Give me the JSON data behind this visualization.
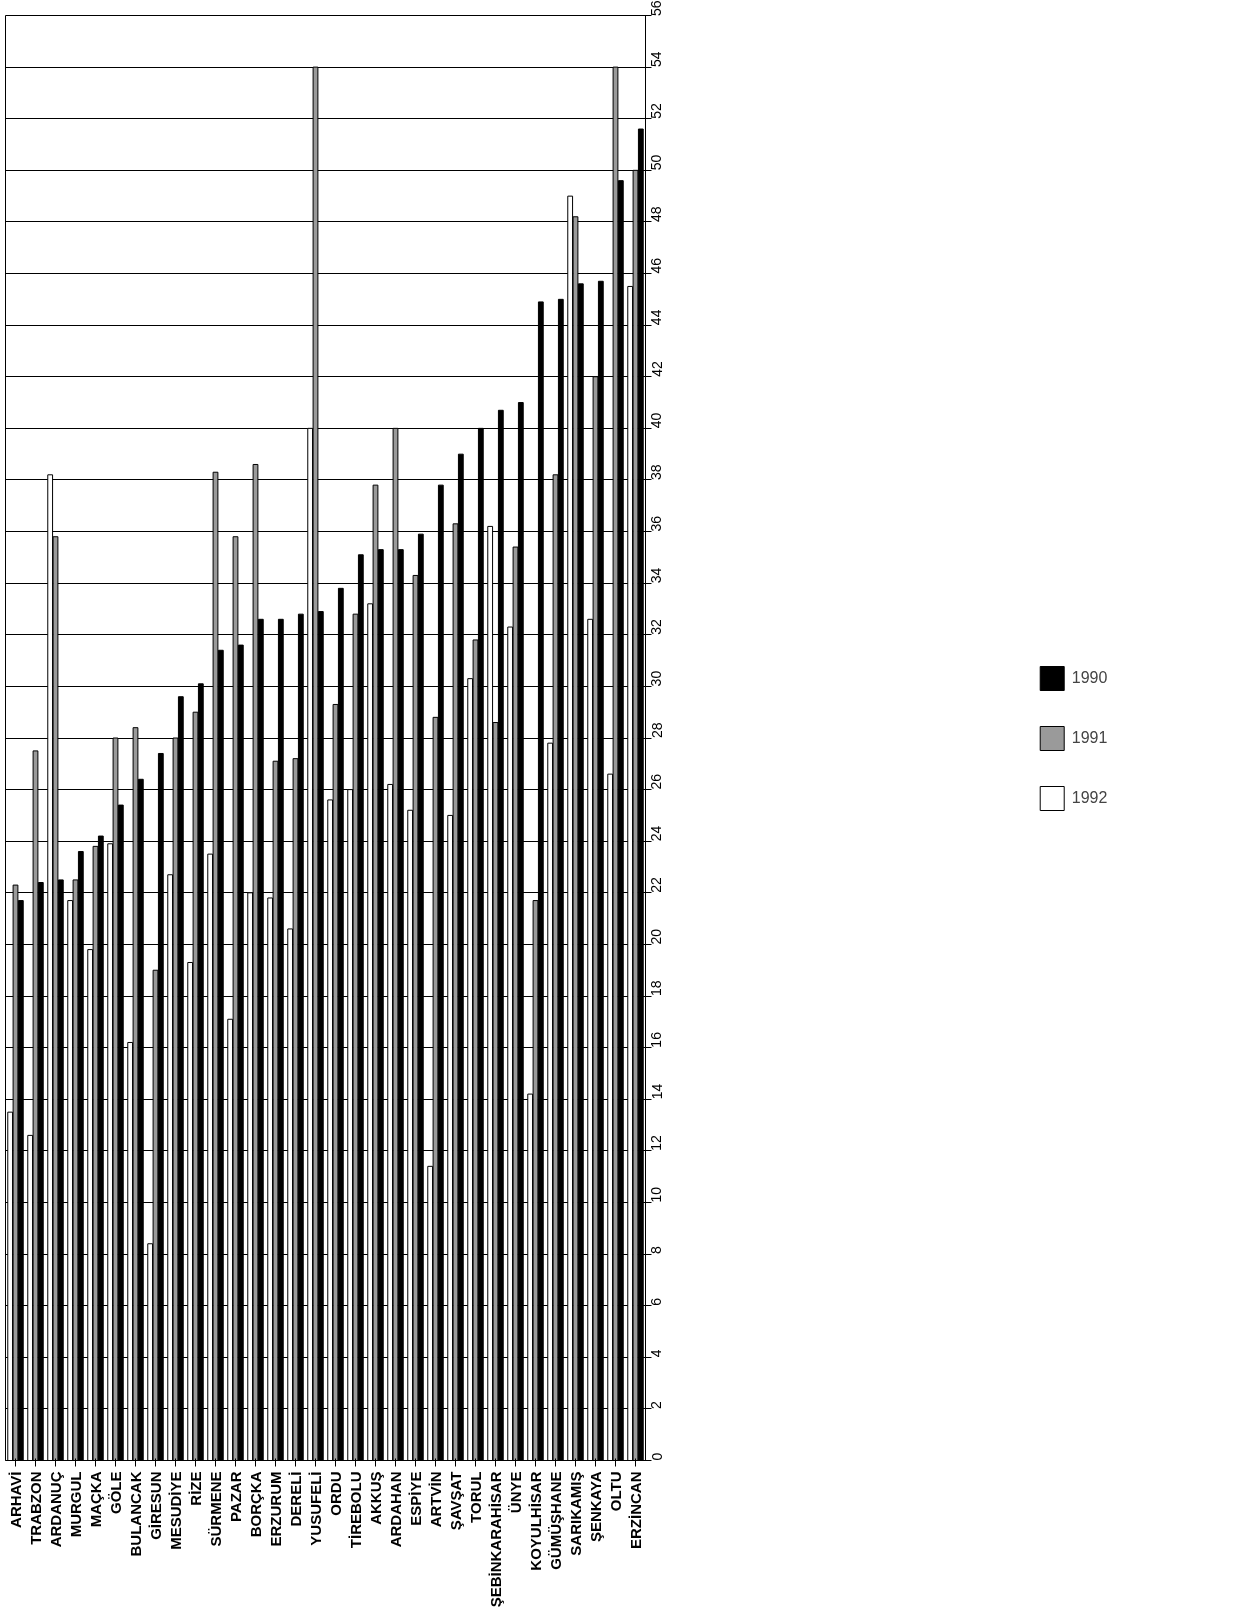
{
  "chart_data": {
    "type": "bar",
    "categories": [
      "ARHAVİ",
      "TRABZON",
      "ARDANUÇ",
      "MURGUL",
      "MAÇKA",
      "GÖLE",
      "BULANCAK",
      "GİRESUN",
      "MESUDİYE",
      "RİZE",
      "SÜRMENE",
      "PAZAR",
      "BORÇKA",
      "ERZURUM",
      "DERELİ",
      "YUSUFELİ",
      "ORDU",
      "TİREBOLU",
      "AKKUŞ",
      "ARDAHAN",
      "ESPİYE",
      "ARTVİN",
      "ŞAVŞAT",
      "TORUL",
      "ŞEBİNKARAHİSAR",
      "ÜNYE",
      "KOYULHİSAR",
      "GÜMÜŞHANE",
      "SARIKAMIŞ",
      "ŞENKAYA",
      "OLTU",
      "ERZİNCAN"
    ],
    "series": [
      {
        "name": "1992",
        "color": "#ffffff",
        "values": [
          13.5,
          12.6,
          38.2,
          21.7,
          19.8,
          23.9,
          16.2,
          8.4,
          22.7,
          19.3,
          23.5,
          17.1,
          22.0,
          21.8,
          20.6,
          40.0,
          25.6,
          26.0,
          33.2,
          26.2,
          25.2,
          11.4,
          25.0,
          30.3,
          36.2,
          32.3,
          14.2,
          27.8,
          49.0,
          32.6,
          26.6,
          45.5
        ]
      },
      {
        "name": "1991",
        "color": "#9a9a9a",
        "values": [
          22.3,
          27.5,
          35.8,
          22.5,
          23.8,
          28.0,
          28.4,
          19.0,
          28.0,
          29.0,
          38.3,
          35.8,
          38.6,
          27.1,
          27.2,
          54.0,
          29.3,
          32.8,
          37.8,
          40.0,
          34.3,
          28.8,
          36.3,
          31.8,
          28.6,
          35.4,
          21.7,
          38.2,
          48.2,
          42.0,
          54.0,
          50.0
        ]
      },
      {
        "name": "1990",
        "color": "#000000",
        "values": [
          21.7,
          22.4,
          22.5,
          23.6,
          24.2,
          25.4,
          26.4,
          27.4,
          29.6,
          30.1,
          31.4,
          31.6,
          32.6,
          32.6,
          32.8,
          32.9,
          33.8,
          35.1,
          35.3,
          35.3,
          35.9,
          37.8,
          39.0,
          40.0,
          40.7,
          41.0,
          44.9,
          45.0,
          45.6,
          45.7,
          49.6,
          51.6
        ]
      }
    ],
    "ylim": [
      0,
      56
    ],
    "yticks": [
      0,
      2,
      4,
      6,
      8,
      10,
      12,
      14,
      16,
      18,
      20,
      22,
      24,
      26,
      28,
      30,
      32,
      34,
      36,
      38,
      40,
      42,
      44,
      46,
      48,
      50,
      52,
      54,
      56
    ],
    "grid": "y",
    "legend": "right"
  }
}
